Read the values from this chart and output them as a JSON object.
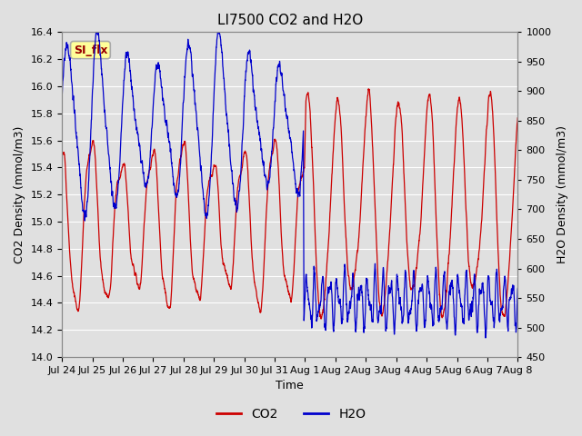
{
  "title": "LI7500 CO2 and H2O",
  "xlabel": "Time",
  "ylabel_left": "CO2 Density (mmol/m3)",
  "ylabel_right": "H2O Density (mmol/m3)",
  "ylim_left": [
    14.0,
    16.4
  ],
  "ylim_right": [
    450,
    1000
  ],
  "xtick_labels": [
    "Jul 24",
    "Jul 25",
    "Jul 26",
    "Jul 27",
    "Jul 28",
    "Jul 29",
    "Jul 30",
    "Jul 31",
    "Aug 1",
    "Aug 2",
    "Aug 3",
    "Aug 4",
    "Aug 5",
    "Aug 6",
    "Aug 7",
    "Aug 8"
  ],
  "co2_color": "#CC0000",
  "h2o_color": "#0000CC",
  "fig_bg_color": "#E0E0E0",
  "plot_bg_color": "#E0E0E0",
  "annotation_text": "SI_flx",
  "annotation_bg": "#FFFF99",
  "annotation_border": "#AAAAAA",
  "legend_co2": "CO2",
  "legend_h2o": "H2O",
  "grid_color": "#FFFFFF",
  "title_fontsize": 11,
  "axis_fontsize": 9,
  "tick_fontsize": 8,
  "n_points": 3000
}
